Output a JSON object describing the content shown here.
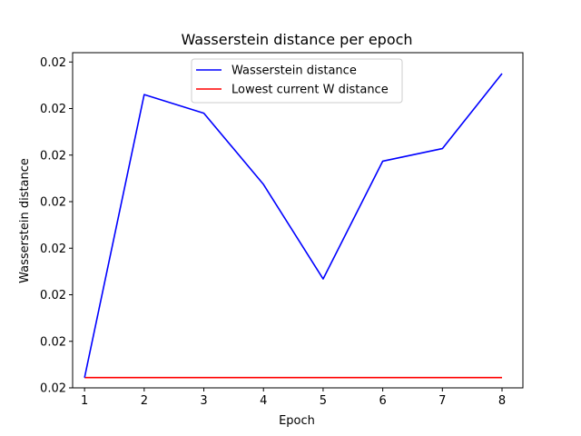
{
  "chart_data": {
    "type": "line",
    "title": "Wasserstein distance per epoch",
    "xlabel": "Epoch",
    "ylabel": "Wasserstein distance",
    "x": [
      1,
      2,
      3,
      4,
      5,
      6,
      7,
      8
    ],
    "xlim": [
      0.8,
      8.35
    ],
    "ylim": [
      0.0,
      7.2
    ],
    "y_tick_values": [
      0,
      1,
      2,
      3,
      4,
      5,
      6,
      7
    ],
    "y_tick_label": "0.02",
    "series": [
      {
        "name": "Wasserstein distance",
        "color": "#0000ff",
        "values": [
          0.22,
          6.3,
          5.9,
          4.37,
          2.34,
          4.87,
          5.14,
          6.75
        ]
      },
      {
        "name": "Lowest current W distance",
        "color": "#ff0000",
        "values": [
          0.22,
          0.22,
          0.22,
          0.22,
          0.22,
          0.22,
          0.22,
          0.22
        ]
      }
    ],
    "legend_position": "upper-center",
    "grid": false
  }
}
